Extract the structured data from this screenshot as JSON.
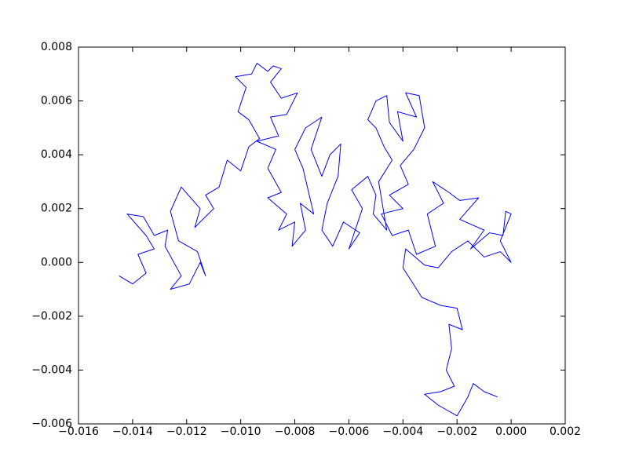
{
  "chart_data": {
    "type": "line",
    "x": [
      -0.0145,
      -0.014,
      -0.0135,
      -0.0138,
      -0.0132,
      -0.0135,
      -0.0142,
      -0.0136,
      -0.0132,
      -0.0127,
      -0.0128,
      -0.0122,
      -0.0126,
      -0.0119,
      -0.0115,
      -0.0113,
      -0.0116,
      -0.0123,
      -0.0126,
      -0.0122,
      -0.0115,
      -0.0117,
      -0.011,
      -0.0113,
      -0.0108,
      -0.0105,
      -0.01,
      -0.0097,
      -0.0093,
      -0.0097,
      -0.0101,
      -0.0098,
      -0.0102,
      -0.0096,
      -0.0094,
      -0.009,
      -0.0088,
      -0.0085,
      -0.0089,
      -0.0085,
      -0.0079,
      -0.0083,
      -0.0089,
      -0.0086,
      -0.0094,
      -0.0087,
      -0.009,
      -0.0085,
      -0.009,
      -0.0083,
      -0.0086,
      -0.008,
      -0.0081,
      -0.0076,
      -0.0078,
      -0.0073,
      -0.0077,
      -0.008,
      -0.0076,
      -0.007,
      -0.0074,
      -0.007,
      -0.0067,
      -0.0063,
      -0.0064,
      -0.0068,
      -0.007,
      -0.0066,
      -0.0062,
      -0.0056,
      -0.006,
      -0.0055,
      -0.0059,
      -0.0053,
      -0.005,
      -0.0051,
      -0.0046,
      -0.0049,
      -0.0044,
      -0.0047,
      -0.005,
      -0.0053,
      -0.005,
      -0.0046,
      -0.0045,
      -0.004,
      -0.0042,
      -0.0035,
      -0.0039,
      -0.0034,
      -0.0032,
      -0.0036,
      -0.0041,
      -0.0038,
      -0.0045,
      -0.004,
      -0.0048,
      -0.0044,
      -0.0038,
      -0.0035,
      -0.0028,
      -0.0031,
      -0.0025,
      -0.0029,
      -0.0023,
      -0.0019,
      -0.0012,
      -0.0019,
      -0.001,
      -0.0015,
      -0.0008,
      -0.0003,
      -0.0002,
      0.0,
      -0.0004,
      0.0,
      -0.0004,
      -0.001,
      -0.0016,
      -0.0022,
      -0.0027,
      -0.0032,
      -0.0039,
      -0.004,
      -0.0033,
      -0.0026,
      -0.002,
      -0.0018,
      -0.0023,
      -0.0022,
      -0.0024,
      -0.0021,
      -0.0026,
      -0.0032,
      -0.0027,
      -0.002,
      -0.0016,
      -0.0014,
      -0.001,
      -0.0005
    ],
    "series": [
      {
        "color": "#0000ff",
        "values": [
          -0.0005,
          -0.0008,
          -0.0004,
          0.0003,
          0.0005,
          0.001,
          0.0018,
          0.0017,
          0.001,
          0.0012,
          0.0006,
          -0.0005,
          -0.001,
          -0.0008,
          0.0,
          -0.0005,
          0.0004,
          0.0008,
          0.0019,
          0.0028,
          0.002,
          0.0013,
          0.002,
          0.0025,
          0.0028,
          0.0038,
          0.0034,
          0.0043,
          0.0046,
          0.0053,
          0.0056,
          0.0065,
          0.0069,
          0.007,
          0.0074,
          0.0071,
          0.0073,
          0.0072,
          0.0067,
          0.0061,
          0.0063,
          0.0055,
          0.0054,
          0.0047,
          0.0045,
          0.0042,
          0.0035,
          0.0026,
          0.0024,
          0.0018,
          0.0012,
          0.0015,
          0.0006,
          0.0012,
          0.0022,
          0.0018,
          0.0035,
          0.0042,
          0.005,
          0.0054,
          0.0042,
          0.0032,
          0.004,
          0.0044,
          0.0032,
          0.0022,
          0.0012,
          0.0006,
          0.0015,
          0.0011,
          0.0005,
          0.002,
          0.0027,
          0.0032,
          0.0025,
          0.0018,
          0.0012,
          0.003,
          0.0038,
          0.0043,
          0.005,
          0.0053,
          0.006,
          0.0062,
          0.0052,
          0.0045,
          0.0056,
          0.0054,
          0.0063,
          0.0062,
          0.005,
          0.0042,
          0.0036,
          0.0029,
          0.0025,
          0.002,
          0.0018,
          0.001,
          0.0012,
          0.0003,
          0.0006,
          0.0018,
          0.0022,
          0.003,
          0.0026,
          0.0023,
          0.0024,
          0.0016,
          0.0012,
          0.0005,
          0.0011,
          0.001,
          0.0019,
          0.0018,
          0.0008,
          0.0,
          0.0004,
          0.0002,
          0.0008,
          0.0004,
          -0.0002,
          -0.0001,
          0.0005,
          -0.0002,
          -0.0013,
          -0.0016,
          -0.0017,
          -0.0025,
          -0.0023,
          -0.0032,
          -0.004,
          -0.0046,
          -0.0048,
          -0.0049,
          -0.0053,
          -0.0057,
          -0.005,
          -0.0045,
          -0.0048,
          -0.005
        ]
      }
    ],
    "xlim": [
      -0.016,
      0.002
    ],
    "ylim": [
      -0.006,
      0.008
    ],
    "xticks": [
      {
        "value": -0.016,
        "label": "−0.016"
      },
      {
        "value": -0.014,
        "label": "−0.014"
      },
      {
        "value": -0.012,
        "label": "−0.012"
      },
      {
        "value": -0.01,
        "label": "−0.010"
      },
      {
        "value": -0.008,
        "label": "−0.008"
      },
      {
        "value": -0.006,
        "label": "−0.006"
      },
      {
        "value": -0.004,
        "label": "−0.004"
      },
      {
        "value": -0.002,
        "label": "−0.002"
      },
      {
        "value": 0,
        "label": "0.000"
      },
      0.002
    ],
    "yticks": [
      {
        "value": -0.006,
        "label": "−0.006"
      },
      {
        "value": -0.004,
        "label": "−0.004"
      },
      {
        "value": -0.002,
        "label": "−0.002"
      },
      {
        "value": 0,
        "label": "0.000"
      },
      0.002,
      0.004,
      0.006,
      0.008
    ]
  }
}
